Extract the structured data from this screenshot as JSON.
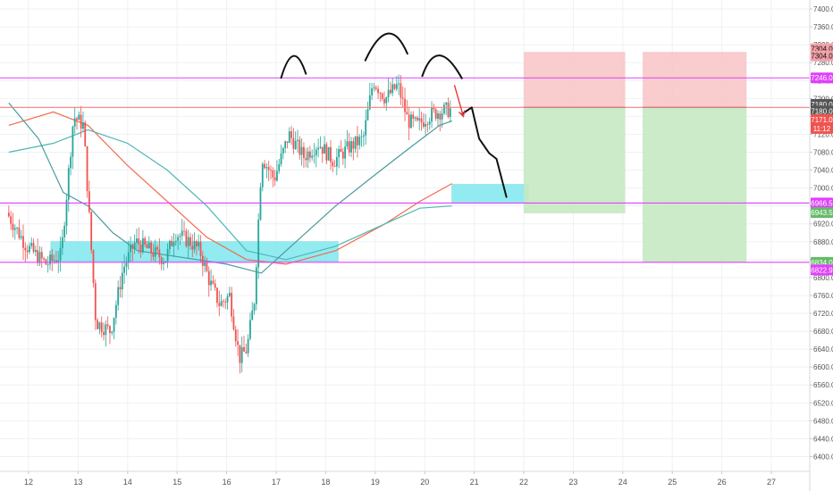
{
  "chart_data": {
    "type": "candlestick",
    "title": "",
    "xlabel": "",
    "ylabel": "",
    "ylim": [
      6384,
      7415
    ],
    "grid": true,
    "x_ticks": [
      "12",
      "13",
      "14",
      "15",
      "16",
      "17",
      "18",
      "19",
      "20",
      "21",
      "22",
      "23",
      "24",
      "25",
      "26",
      "27"
    ],
    "y_ticks": [
      6400.0,
      6440.0,
      6480.0,
      6520.0,
      6560.0,
      6600.0,
      6640.0,
      6680.0,
      6720.0,
      6760.0,
      6800.0,
      6840.0,
      6880.0,
      6920.0,
      6960.0,
      7000.0,
      7040.0,
      7080.0,
      7120.0,
      7160.0,
      7200.0,
      7240.0,
      7280.0,
      7320.0,
      7360.0,
      7400.0
    ],
    "price_anchors": [
      {
        "day": 11.6,
        "price": 6945
      },
      {
        "day": 12.0,
        "price": 6870
      },
      {
        "day": 12.4,
        "price": 6830
      },
      {
        "day": 12.7,
        "price": 6850
      },
      {
        "day": 12.95,
        "price": 7160
      },
      {
        "day": 13.15,
        "price": 7140
      },
      {
        "day": 13.4,
        "price": 6700
      },
      {
        "day": 13.7,
        "price": 6680
      },
      {
        "day": 13.95,
        "price": 6820
      },
      {
        "day": 14.2,
        "price": 6880
      },
      {
        "day": 14.5,
        "price": 6860
      },
      {
        "day": 14.8,
        "price": 6840
      },
      {
        "day": 15.0,
        "price": 6900
      },
      {
        "day": 15.3,
        "price": 6880
      },
      {
        "day": 15.5,
        "price": 6860
      },
      {
        "day": 15.7,
        "price": 6790
      },
      {
        "day": 15.9,
        "price": 6740
      },
      {
        "day": 16.1,
        "price": 6760
      },
      {
        "day": 16.3,
        "price": 6620
      },
      {
        "day": 16.45,
        "price": 6640
      },
      {
        "day": 16.6,
        "price": 6750
      },
      {
        "day": 16.75,
        "price": 7070
      },
      {
        "day": 17.0,
        "price": 7020
      },
      {
        "day": 17.3,
        "price": 7120
      },
      {
        "day": 17.6,
        "price": 7070
      },
      {
        "day": 17.9,
        "price": 7100
      },
      {
        "day": 18.2,
        "price": 7060
      },
      {
        "day": 18.5,
        "price": 7090
      },
      {
        "day": 18.8,
        "price": 7110
      },
      {
        "day": 19.0,
        "price": 7240
      },
      {
        "day": 19.25,
        "price": 7200
      },
      {
        "day": 19.5,
        "price": 7230
      },
      {
        "day": 19.7,
        "price": 7150
      },
      {
        "day": 19.9,
        "price": 7140
      },
      {
        "day": 20.1,
        "price": 7160
      },
      {
        "day": 20.3,
        "price": 7170
      },
      {
        "day": 20.55,
        "price": 7175
      }
    ],
    "moving_averages": [
      {
        "color": "#f4694c",
        "points": [
          {
            "day": 11.6,
            "price": 7140
          },
          {
            "day": 12.5,
            "price": 7170
          },
          {
            "day": 13.2,
            "price": 7140
          },
          {
            "day": 14.0,
            "price": 7050
          },
          {
            "day": 14.8,
            "price": 6970
          },
          {
            "day": 15.6,
            "price": 6890
          },
          {
            "day": 16.4,
            "price": 6840
          },
          {
            "day": 17.2,
            "price": 6830
          },
          {
            "day": 18.2,
            "price": 6860
          },
          {
            "day": 19.2,
            "price": 6920
          },
          {
            "day": 19.9,
            "price": 6970
          },
          {
            "day": 20.55,
            "price": 7010
          }
        ]
      },
      {
        "color": "#4fb7b4",
        "points": [
          {
            "day": 11.6,
            "price": 7080
          },
          {
            "day": 12.5,
            "price": 7100
          },
          {
            "day": 13.2,
            "price": 7130
          },
          {
            "day": 14.0,
            "price": 7100
          },
          {
            "day": 14.8,
            "price": 7040
          },
          {
            "day": 15.6,
            "price": 6960
          },
          {
            "day": 16.4,
            "price": 6860
          },
          {
            "day": 17.2,
            "price": 6840
          },
          {
            "day": 18.2,
            "price": 6870
          },
          {
            "day": 19.2,
            "price": 6920
          },
          {
            "day": 19.9,
            "price": 6955
          },
          {
            "day": 20.55,
            "price": 6960
          }
        ]
      },
      {
        "color": "#4a9a9a",
        "points": [
          {
            "day": 11.6,
            "price": 7190
          },
          {
            "day": 12.2,
            "price": 7110
          },
          {
            "day": 12.7,
            "price": 6990
          },
          {
            "day": 13.2,
            "price": 6960
          },
          {
            "day": 13.7,
            "price": 6900
          },
          {
            "day": 14.2,
            "price": 6860
          },
          {
            "day": 14.8,
            "price": 6850
          },
          {
            "day": 15.4,
            "price": 6840
          },
          {
            "day": 16.0,
            "price": 6830
          },
          {
            "day": 16.7,
            "price": 6810
          },
          {
            "day": 17.4,
            "price": 6880
          },
          {
            "day": 18.2,
            "price": 6960
          },
          {
            "day": 19.0,
            "price": 7030
          },
          {
            "day": 19.7,
            "price": 7090
          },
          {
            "day": 20.3,
            "price": 7140
          },
          {
            "day": 20.55,
            "price": 7150
          }
        ]
      }
    ],
    "horizontal_lines": [
      {
        "price": 7246,
        "color": "#e040fb"
      },
      {
        "price": 7180,
        "color": "#f08080"
      },
      {
        "price": 6966.5,
        "color": "#e040fb"
      },
      {
        "price": 6834,
        "color": "#e040fb"
      }
    ],
    "zones": [
      {
        "x0": 12.45,
        "x1": 18.25,
        "y0": 6836,
        "y1": 6880,
        "color": "#7fe8ef"
      },
      {
        "x0": 20.55,
        "x1": 22.1,
        "y0": 6966,
        "y1": 7008,
        "color": "#7fe8ef"
      }
    ],
    "positions": [
      {
        "x0": 22.0,
        "x1": 24.05,
        "entry": 7180,
        "stop": 7304,
        "target": 6943.5
      },
      {
        "x0": 24.4,
        "x1": 26.5,
        "entry": 7180,
        "stop": 7304,
        "target": 6834
      }
    ],
    "price_labels": [
      {
        "text": "7304.0",
        "price": 7311,
        "bg": "#f3a1a8",
        "fg": "#111111"
      },
      {
        "text": "7304.0",
        "price": 7295,
        "bg": "#f3a1a8",
        "fg": "#111111"
      },
      {
        "text": "7246.0",
        "price": 7246,
        "bg": "#e040fb",
        "fg": "#ffffff"
      },
      {
        "text": "7180.0",
        "price": 7187,
        "bg": "#555555",
        "fg": "#ffffff"
      },
      {
        "text": "7180.0",
        "price": 7172,
        "bg": "#555555",
        "fg": "#ffffff"
      },
      {
        "text": "7171.0",
        "price": 7153,
        "bg": "#ef5350",
        "fg": "#ffffff"
      },
      {
        "text": "11:12",
        "price": 7133,
        "bg": "#ef5350",
        "fg": "#ffffff"
      },
      {
        "text": "6966.5",
        "price": 6966.5,
        "bg": "#e040fb",
        "fg": "#ffffff"
      },
      {
        "text": "6943.5",
        "price": 6945,
        "bg": "#66bb6a",
        "fg": "#ffffff"
      },
      {
        "text": "6834.0",
        "price": 6834,
        "bg": "#66bb6a",
        "fg": "#ffffff"
      },
      {
        "text": "6822.9",
        "price": 6817,
        "bg": "#e040fb",
        "fg": "#ffffff"
      }
    ],
    "annotations": [
      {
        "kind": "arc",
        "points": [
          {
            "day": 17.1,
            "price": 7246
          },
          {
            "day": 17.35,
            "price": 7295
          },
          {
            "day": 17.6,
            "price": 7255
          }
        ]
      },
      {
        "kind": "arc",
        "points": [
          {
            "day": 18.8,
            "price": 7285
          },
          {
            "day": 19.25,
            "price": 7345
          },
          {
            "day": 19.65,
            "price": 7300
          }
        ]
      },
      {
        "kind": "arc",
        "points": [
          {
            "day": 19.95,
            "price": 7250
          },
          {
            "day": 20.3,
            "price": 7296
          },
          {
            "day": 20.75,
            "price": 7245
          }
        ]
      },
      {
        "kind": "path",
        "points": [
          {
            "day": 20.75,
            "price": 7165
          },
          {
            "day": 20.95,
            "price": 7180
          },
          {
            "day": 21.1,
            "price": 7110
          },
          {
            "day": 21.3,
            "price": 7078
          },
          {
            "day": 21.45,
            "price": 7065
          },
          {
            "day": 21.65,
            "price": 6980
          }
        ]
      },
      {
        "kind": "arrow",
        "points": [
          {
            "day": 20.6,
            "price": 7230
          },
          {
            "day": 20.78,
            "price": 7160
          }
        ]
      }
    ],
    "colors": {
      "bull": "#26a69a",
      "bear": "#ef5350",
      "grid": "#eef1f5",
      "axis_text": "#555555",
      "annotation": "#111111",
      "arrow": "#e53935",
      "loss_zone": "#f8c3c6",
      "profit_zone": "#c7e9c3",
      "position_line": "#555555"
    }
  }
}
